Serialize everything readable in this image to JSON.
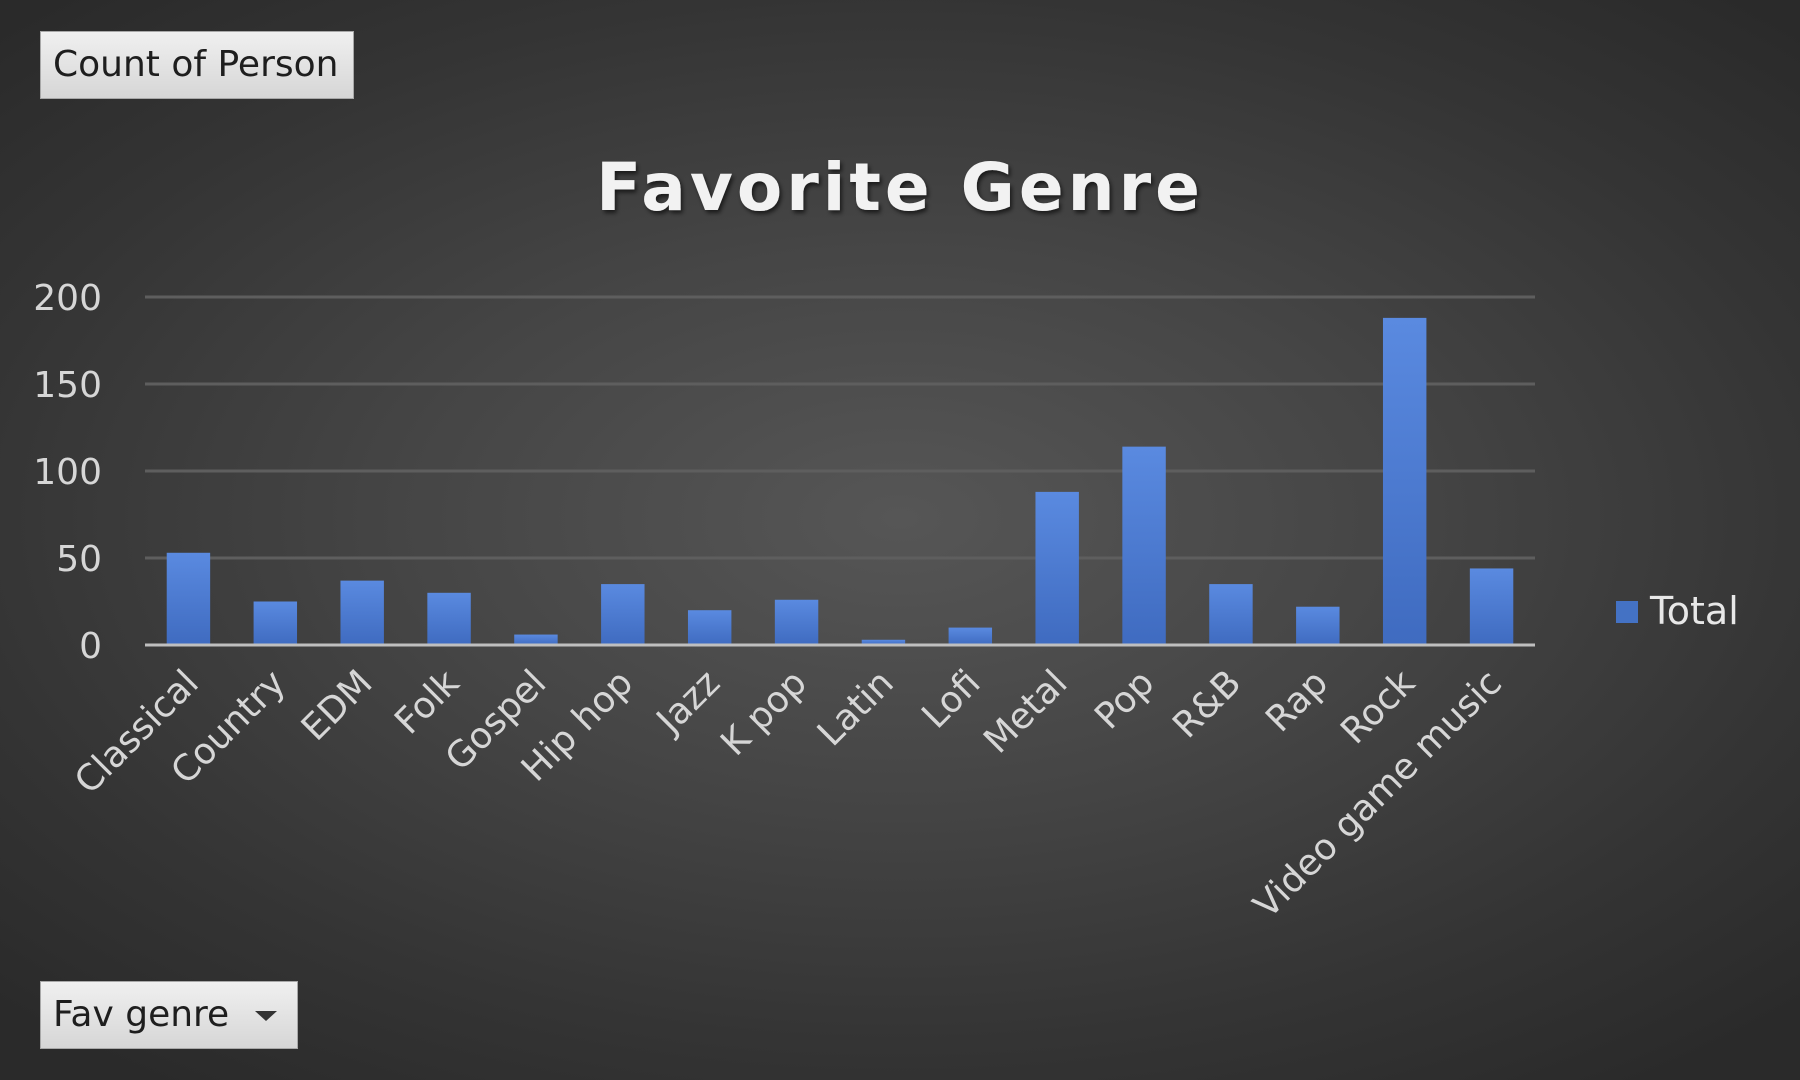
{
  "value_field": {
    "label": "Count of Person"
  },
  "axis_field": {
    "label": "Fav genre"
  },
  "chart_data": {
    "type": "bar",
    "title": "Favorite Genre",
    "categories": [
      "Classical",
      "Country",
      "EDM",
      "Folk",
      "Gospel",
      "Hip hop",
      "Jazz",
      "K pop",
      "Latin",
      "Lofi",
      "Metal",
      "Pop",
      "R&B",
      "Rap",
      "Rock",
      "Video game music"
    ],
    "series": [
      {
        "name": "Total",
        "values": [
          53,
          25,
          37,
          30,
          6,
          35,
          20,
          26,
          3,
          10,
          88,
          114,
          35,
          22,
          188,
          44
        ],
        "color": "#4472c4"
      }
    ],
    "ylim": [
      0,
      200
    ],
    "yticks": [
      0,
      50,
      100,
      150,
      200
    ],
    "grid": true,
    "legend": "right",
    "colors": {
      "bar": "#4472c4",
      "bar_top": "#5a8ae0",
      "text": "#e8e8e8",
      "tick_text": "#d6d6d6",
      "gridline": "#5e5e5e",
      "axis_line": "#bfbfbf"
    }
  }
}
